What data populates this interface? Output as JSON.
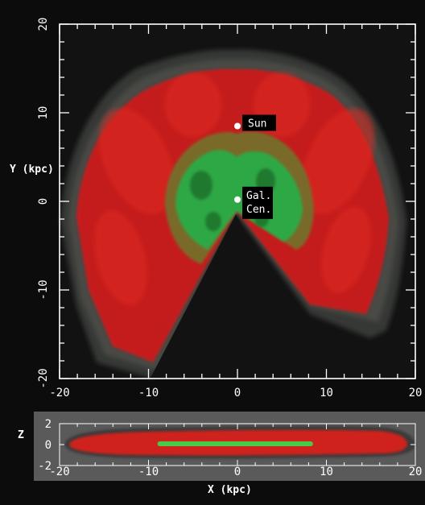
{
  "chart_data": [
    {
      "type": "heatmap",
      "panel": "top",
      "ylabel": "Y (kpc)",
      "xlim": [
        -20,
        20
      ],
      "ylim": [
        -20,
        20
      ],
      "x_ticks": [
        "-20",
        "-10",
        "0",
        "10",
        "20"
      ],
      "y_ticks": [
        "-20",
        "-10",
        "0",
        "10",
        "20"
      ],
      "grid": false,
      "colors": {
        "background": "#121212",
        "low": "#2c2f2c",
        "mid": "#c8201e",
        "high": "#2fb04a"
      },
      "annotations": [
        {
          "text": "Sun",
          "x": 0,
          "y": 8.5
        },
        {
          "text": "Gal.",
          "x": 0,
          "y": 0.2
        },
        {
          "text": "Cen.",
          "x": 0,
          "y": 0.2
        }
      ],
      "empty_wedge_apex": [
        0,
        2
      ],
      "empty_wedge_half_angle_deg": 30
    },
    {
      "type": "heatmap",
      "panel": "bottom",
      "xlabel": "X (kpc)",
      "ylabel": "Z",
      "xlim": [
        -20,
        20
      ],
      "ylim": [
        -2,
        2
      ],
      "x_ticks": [
        "-20",
        "-10",
        "0",
        "10",
        "20"
      ],
      "y_ticks": [
        "2",
        "0",
        "-2"
      ],
      "grid": false,
      "colors": {
        "background": "#5a5a5a",
        "low": "#3a3a3a",
        "mid": "#d0201e",
        "high": "#47c94a"
      },
      "disk_extent_x": [
        -19,
        18
      ],
      "green_band_x": [
        -9,
        8.5
      ]
    }
  ],
  "labels": {
    "sun": "Sun",
    "gal1": "Gal.",
    "gal2": "Cen.",
    "ylabel_top": "Y (kpc)",
    "zlabel": "Z",
    "xlabel": "X (kpc)"
  }
}
